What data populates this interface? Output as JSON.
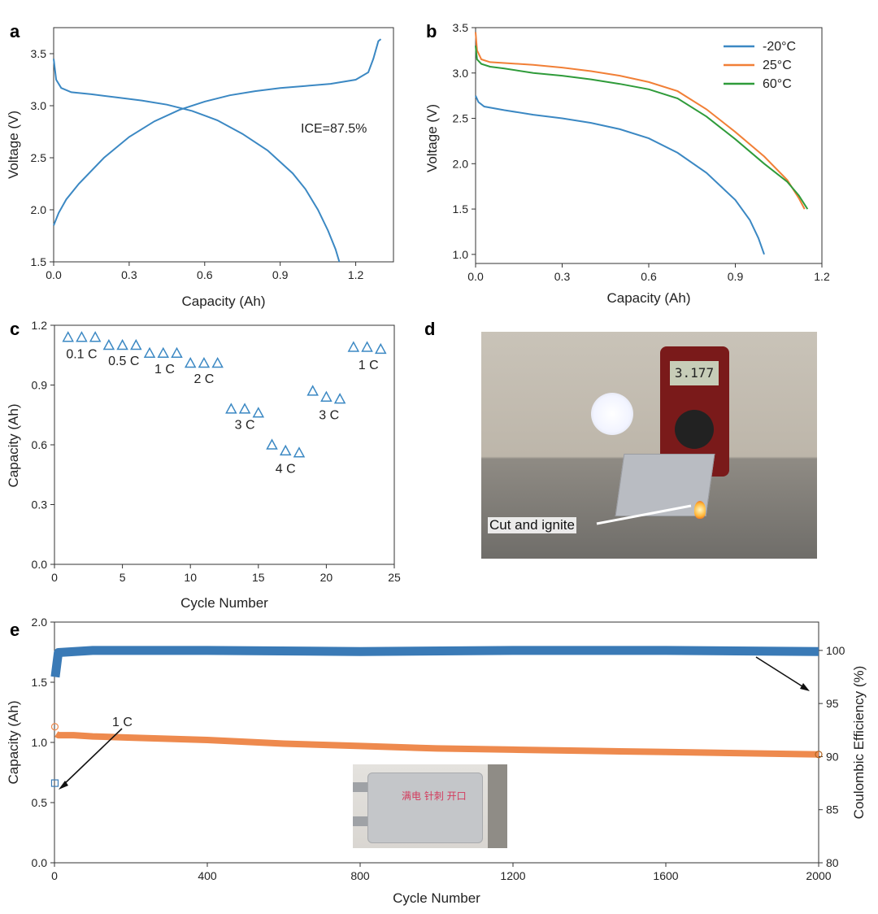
{
  "panels": {
    "a": "a",
    "b": "b",
    "c": "c",
    "d": "d",
    "e": "e"
  },
  "colors": {
    "blue": "#3b88c3",
    "orange": "#f17f36",
    "green": "#2f9b3a",
    "ce": "#3a7ab6",
    "cap": "#ee8a4e",
    "tri": "#3b88c3"
  },
  "chart_data": [
    {
      "id": "a",
      "type": "line",
      "xlabel": "Capacity (Ah)",
      "ylabel": "Voltage (V)",
      "xlim": [
        0,
        1.35
      ],
      "ylim": [
        1.5,
        3.75
      ],
      "xticks": [
        0.0,
        0.3,
        0.6,
        0.9,
        1.2
      ],
      "xtick_labels": [
        "0.0",
        "0.3",
        "0.6",
        "0.9",
        "1.2"
      ],
      "yticks": [
        1.5,
        2.0,
        2.5,
        3.0,
        3.5
      ],
      "ytick_labels": [
        "1.5",
        "2.0",
        "2.5",
        "3.0",
        "3.5"
      ],
      "annotation": "ICE=87.5%",
      "series": [
        {
          "name": "charge",
          "color": "#3b88c3",
          "x": [
            0,
            0.02,
            0.05,
            0.1,
            0.2,
            0.3,
            0.4,
            0.5,
            0.6,
            0.7,
            0.8,
            0.9,
            1.0,
            1.1,
            1.2,
            1.25,
            1.27,
            1.29,
            1.3
          ],
          "y": [
            1.85,
            1.97,
            2.1,
            2.25,
            2.5,
            2.7,
            2.85,
            2.96,
            3.04,
            3.1,
            3.14,
            3.17,
            3.19,
            3.21,
            3.25,
            3.32,
            3.45,
            3.62,
            3.64
          ]
        },
        {
          "name": "discharge",
          "color": "#3b88c3",
          "x": [
            0,
            0.01,
            0.03,
            0.07,
            0.15,
            0.25,
            0.35,
            0.45,
            0.55,
            0.65,
            0.75,
            0.85,
            0.95,
            1.0,
            1.05,
            1.09,
            1.12,
            1.135
          ],
          "y": [
            3.45,
            3.25,
            3.17,
            3.13,
            3.11,
            3.08,
            3.05,
            3.01,
            2.95,
            2.86,
            2.73,
            2.57,
            2.35,
            2.2,
            2.0,
            1.8,
            1.62,
            1.5
          ]
        }
      ]
    },
    {
      "id": "b",
      "type": "line",
      "xlabel": "Capacity (Ah)",
      "ylabel": "Voltage (V)",
      "xlim": [
        0,
        1.2
      ],
      "ylim": [
        0.9,
        3.5
      ],
      "xticks": [
        0.0,
        0.3,
        0.6,
        0.9,
        1.2
      ],
      "xtick_labels": [
        "0.0",
        "0.3",
        "0.6",
        "0.9",
        "1.2"
      ],
      "yticks": [
        1.0,
        1.5,
        2.0,
        2.5,
        3.0,
        3.5
      ],
      "ytick_labels": [
        "1.0",
        "1.5",
        "2.0",
        "2.5",
        "3.0",
        "3.5"
      ],
      "legend_position": "top-right",
      "series": [
        {
          "name": "-20°C",
          "color": "#3b88c3",
          "x": [
            0,
            0.01,
            0.03,
            0.1,
            0.2,
            0.3,
            0.4,
            0.5,
            0.6,
            0.7,
            0.8,
            0.9,
            0.95,
            0.98,
            1.0
          ],
          "y": [
            2.75,
            2.68,
            2.63,
            2.59,
            2.54,
            2.5,
            2.45,
            2.38,
            2.28,
            2.12,
            1.9,
            1.6,
            1.38,
            1.18,
            1.0
          ]
        },
        {
          "name": "25°C",
          "color": "#f17f36",
          "x": [
            0,
            0.005,
            0.02,
            0.05,
            0.1,
            0.2,
            0.3,
            0.4,
            0.5,
            0.6,
            0.7,
            0.8,
            0.9,
            1.0,
            1.08,
            1.12,
            1.14
          ],
          "y": [
            3.45,
            3.25,
            3.15,
            3.12,
            3.11,
            3.09,
            3.06,
            3.02,
            2.97,
            2.9,
            2.8,
            2.6,
            2.35,
            2.08,
            1.82,
            1.62,
            1.5
          ]
        },
        {
          "name": "60°C",
          "color": "#2f9b3a",
          "x": [
            0,
            0.005,
            0.02,
            0.05,
            0.1,
            0.2,
            0.3,
            0.4,
            0.5,
            0.6,
            0.7,
            0.8,
            0.9,
            1.0,
            1.08,
            1.12,
            1.15
          ],
          "y": [
            3.3,
            3.15,
            3.1,
            3.07,
            3.05,
            3.0,
            2.97,
            2.93,
            2.88,
            2.82,
            2.72,
            2.52,
            2.27,
            2.0,
            1.8,
            1.65,
            1.5
          ]
        }
      ]
    },
    {
      "id": "c",
      "type": "scatter",
      "xlabel": "Cycle Number",
      "ylabel": "Capacity (Ah)",
      "xlim": [
        0,
        25
      ],
      "ylim": [
        0,
        1.2
      ],
      "xticks": [
        0,
        5,
        10,
        15,
        20,
        25
      ],
      "xtick_labels": [
        "0",
        "5",
        "10",
        "15",
        "20",
        "25"
      ],
      "yticks": [
        0.0,
        0.3,
        0.6,
        0.9,
        1.2
      ],
      "ytick_labels": [
        "0.0",
        "0.3",
        "0.6",
        "0.9",
        "1.2"
      ],
      "x": [
        1,
        2,
        3,
        4,
        5,
        6,
        7,
        8,
        9,
        10,
        11,
        12,
        13,
        14,
        15,
        16,
        17,
        18,
        19,
        20,
        21,
        22,
        23,
        24
      ],
      "y": [
        1.14,
        1.14,
        1.14,
        1.1,
        1.1,
        1.1,
        1.06,
        1.06,
        1.06,
        1.01,
        1.01,
        1.01,
        0.78,
        0.78,
        0.76,
        0.6,
        0.57,
        0.56,
        0.87,
        0.84,
        0.83,
        1.09,
        1.09,
        1.08
      ],
      "rate_labels": [
        {
          "text": "0.1 C",
          "x": 2,
          "y": 1.055
        },
        {
          "text": "0.5 C",
          "x": 5.1,
          "y": 1.02
        },
        {
          "text": "1 C",
          "x": 8.1,
          "y": 0.98
        },
        {
          "text": "2 C",
          "x": 11,
          "y": 0.93
        },
        {
          "text": "3 C",
          "x": 14,
          "y": 0.7
        },
        {
          "text": "4 C",
          "x": 17,
          "y": 0.48
        },
        {
          "text": "3 C",
          "x": 20.2,
          "y": 0.75
        },
        {
          "text": "1 C",
          "x": 23.1,
          "y": 1.0
        }
      ]
    },
    {
      "id": "e",
      "type": "scatter",
      "xlabel": "Cycle Number",
      "ylabel": "Capacity (Ah)",
      "y2label": "Coulombic Efficiency (%)",
      "xlim": [
        0,
        2000
      ],
      "ylim": [
        0,
        2.0
      ],
      "y2lim": [
        80,
        102.67
      ],
      "xticks": [
        0,
        400,
        800,
        1200,
        1600,
        2000
      ],
      "xtick_labels": [
        "0",
        "400",
        "800",
        "1200",
        "1600",
        "2000"
      ],
      "yticks": [
        0.0,
        0.5,
        1.0,
        1.5,
        2.0
      ],
      "ytick_labels": [
        "0.0",
        "0.5",
        "1.0",
        "1.5",
        "2.0"
      ],
      "y2ticks": [
        80,
        85,
        90,
        95,
        100
      ],
      "y2tick_labels": [
        "80",
        "85",
        "90",
        "95",
        "100"
      ],
      "annotation": "1 C",
      "series": [
        {
          "name": "Capacity",
          "axis": "left",
          "color": "#ee8a4e",
          "x": [
            1,
            5,
            10,
            50,
            100,
            200,
            400,
            600,
            800,
            1000,
            1200,
            1400,
            1600,
            1800,
            2000
          ],
          "y": [
            1.13,
            1.07,
            1.06,
            1.06,
            1.05,
            1.04,
            1.02,
            0.99,
            0.97,
            0.95,
            0.94,
            0.93,
            0.92,
            0.91,
            0.9
          ]
        },
        {
          "name": "Coulombic Efficiency",
          "axis": "right",
          "color": "#3a7ab6",
          "x": [
            1,
            2,
            10,
            100,
            400,
            800,
            1200,
            1600,
            2000
          ],
          "y": [
            87.5,
            97.5,
            99.8,
            100,
            100,
            99.9,
            100,
            100,
            99.9
          ]
        }
      ]
    }
  ],
  "photo_d": {
    "label": "Cut and ignite",
    "meter_reading": "3.177"
  },
  "photo_e": {
    "handwriting": "满电 针刺 开口"
  }
}
